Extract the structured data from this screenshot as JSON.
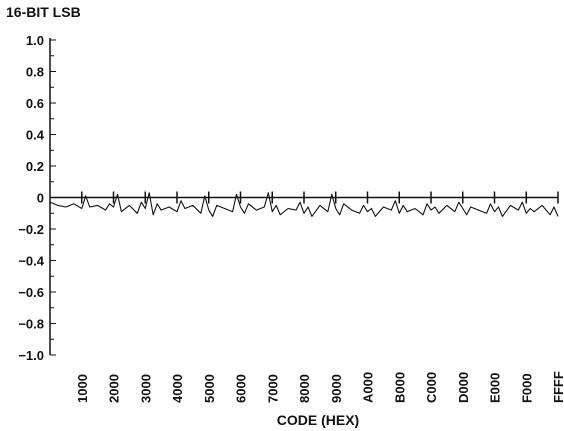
{
  "chart_data": {
    "type": "line",
    "title": "",
    "ylabel": "16-BIT LSB",
    "xlabel": "CODE (HEX)",
    "ylim": [
      -1.0,
      1.0
    ],
    "xlim": [
      0,
      65535
    ],
    "grid": false,
    "y_ticks": [
      "1.0",
      "0.8",
      "0.6",
      "0.4",
      "0.2",
      "0",
      "−0.2",
      "−0.4",
      "−0.6",
      "−0.8",
      "−1.0"
    ],
    "y_tick_values": [
      1.0,
      0.8,
      0.6,
      0.4,
      0.2,
      0,
      -0.2,
      -0.4,
      -0.6,
      -0.8,
      -1.0
    ],
    "x_ticks": [
      "1000",
      "2000",
      "3000",
      "4000",
      "5000",
      "6000",
      "7000",
      "8000",
      "9000",
      "A000",
      "B000",
      "C000",
      "D000",
      "E000",
      "F000",
      "FFFF"
    ],
    "x_tick_values": [
      4096,
      8192,
      12288,
      16384,
      20480,
      24576,
      28672,
      32768,
      36864,
      40960,
      45056,
      49152,
      53248,
      57344,
      61440,
      65535
    ],
    "series": [
      {
        "x": [
          0,
          1024,
          2048,
          3072,
          4096,
          4608,
          5120,
          6144,
          7168,
          7680,
          8192,
          8704,
          9216,
          10240,
          11264,
          11776,
          12288,
          12800,
          13312,
          13824,
          14336,
          15360,
          16384,
          16896,
          17408,
          18432,
          19456,
          19968,
          20480,
          20992,
          21504,
          22528,
          23552,
          24064,
          24576,
          25088,
          25600,
          26624,
          27648,
          28160,
          28672,
          29184,
          29696,
          30720,
          31744,
          32256,
          32768,
          33280,
          33792,
          34816,
          35840,
          36352,
          36864,
          37376,
          37888,
          38912,
          39936,
          40448,
          40960,
          41472,
          41984,
          43008,
          44032,
          44544,
          45056,
          45568,
          46080,
          47104,
          48128,
          48640,
          49152,
          49664,
          50176,
          51200,
          52224,
          52736,
          53248,
          53760,
          54272,
          55296,
          56320,
          56832,
          57344,
          57856,
          58368,
          59392,
          60416,
          60928,
          61440,
          61952,
          62464,
          63488,
          64512,
          65024,
          65535
        ],
        "values": [
          -0.03,
          -0.05,
          -0.06,
          -0.04,
          -0.07,
          0.01,
          -0.06,
          -0.05,
          -0.08,
          -0.04,
          -0.06,
          0.02,
          -0.09,
          -0.05,
          -0.1,
          -0.03,
          -0.07,
          0.03,
          -0.11,
          -0.04,
          -0.08,
          -0.06,
          -0.09,
          -0.02,
          -0.07,
          -0.05,
          -0.1,
          0.01,
          -0.08,
          -0.12,
          -0.05,
          -0.07,
          -0.09,
          0.02,
          -0.06,
          -0.1,
          -0.04,
          -0.08,
          -0.06,
          0.03,
          -0.09,
          -0.05,
          -0.11,
          -0.07,
          -0.08,
          -0.03,
          -0.1,
          -0.06,
          -0.12,
          -0.05,
          -0.09,
          0.02,
          -0.07,
          -0.11,
          -0.04,
          -0.08,
          -0.1,
          -0.05,
          -0.09,
          -0.07,
          -0.12,
          -0.06,
          -0.08,
          -0.02,
          -0.1,
          -0.05,
          -0.09,
          -0.07,
          -0.11,
          -0.04,
          -0.08,
          -0.06,
          -0.1,
          -0.05,
          -0.09,
          -0.03,
          -0.07,
          -0.11,
          -0.06,
          -0.08,
          -0.1,
          -0.04,
          -0.09,
          -0.06,
          -0.12,
          -0.05,
          -0.08,
          -0.03,
          -0.1,
          -0.07,
          -0.09,
          -0.05,
          -0.11,
          -0.06,
          -0.12
        ]
      }
    ],
    "colors": {
      "line": "#111111",
      "axis": "#111111",
      "background": "#ffffff"
    }
  }
}
